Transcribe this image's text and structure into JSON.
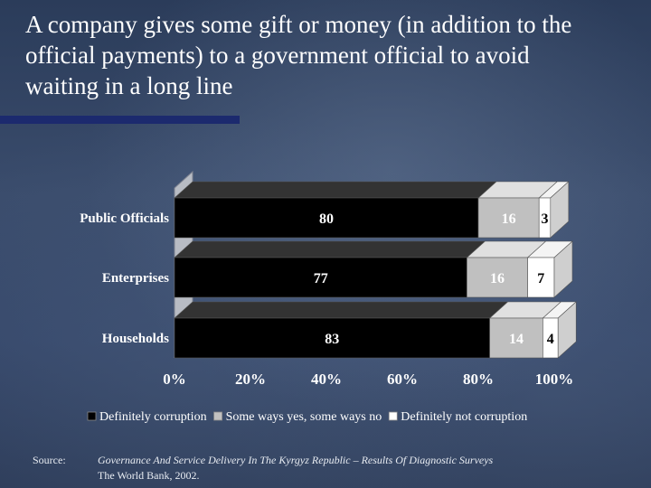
{
  "title": "A company gives some gift or money  (in addition to the official payments) to a government official to avoid waiting in a long line",
  "colors": {
    "definitely_corruption": "#000000",
    "some_ways": "#c0c0c0",
    "definitely_not": "#ffffff",
    "label_color": "#ffffff",
    "title_bar": "#1c2a6e"
  },
  "chart_data": {
    "type": "bar",
    "orientation": "horizontal",
    "stacked": true,
    "percent_stacked": true,
    "categories": [
      "Public Officials",
      "Enterprises",
      "Households"
    ],
    "series": [
      {
        "name": "Definitely corruption",
        "values": [
          80,
          77,
          83
        ]
      },
      {
        "name": "Some ways yes, some ways no",
        "values": [
          16,
          16,
          14
        ]
      },
      {
        "name": "Definitely not corruption",
        "values": [
          3,
          7,
          4
        ]
      }
    ],
    "x_ticks": [
      "0%",
      "20%",
      "40%",
      "60%",
      "80%",
      "100%"
    ],
    "xlim": [
      0,
      100
    ],
    "legend_position": "bottom",
    "grid": false,
    "three_d": true
  },
  "source": {
    "label": "Source:",
    "text": "Governance And Service Delivery In The Kyrgyz Republic – Results Of Diagnostic Surveys",
    "org": "The World Bank, 2002."
  }
}
